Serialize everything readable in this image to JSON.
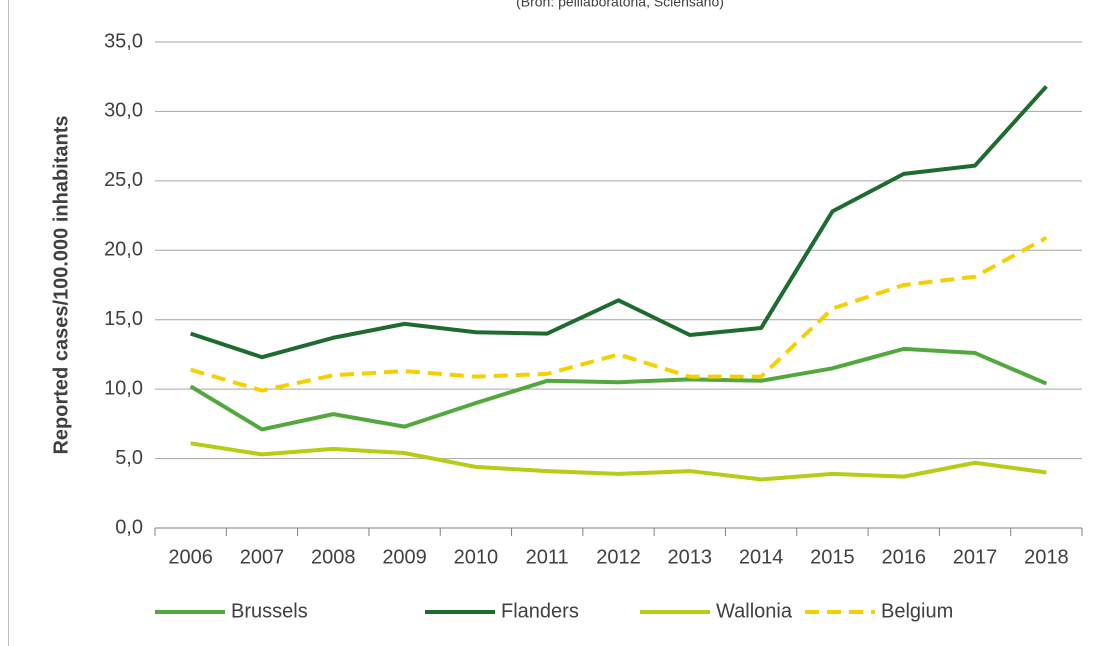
{
  "chart_data": {
    "type": "line",
    "subtitle": "(Bron: peillaboratoria, Sciensano)",
    "y_label": "Reported cases/100.000 inhabitants",
    "categories": [
      "2006",
      "2007",
      "2008",
      "2009",
      "2010",
      "2011",
      "2012",
      "2013",
      "2014",
      "2015",
      "2016",
      "2017",
      "2018"
    ],
    "series": [
      {
        "name": "Brussels",
        "color": "#52a83c",
        "dashed": false,
        "values": [
          10.2,
          7.1,
          8.2,
          7.3,
          9.0,
          10.6,
          10.5,
          10.7,
          10.6,
          11.5,
          12.9,
          12.6,
          10.4
        ]
      },
      {
        "name": "Flanders",
        "color": "#1e6b30",
        "dashed": false,
        "values": [
          14.0,
          12.3,
          13.7,
          14.7,
          14.1,
          14.0,
          16.4,
          13.9,
          14.4,
          22.8,
          25.5,
          26.1,
          31.8
        ]
      },
      {
        "name": "Wallonia",
        "color": "#b7cc16",
        "dashed": false,
        "values": [
          6.1,
          5.3,
          5.7,
          5.4,
          4.4,
          4.1,
          3.9,
          4.1,
          3.5,
          3.9,
          3.7,
          4.7,
          4.0
        ]
      },
      {
        "name": "Belgium",
        "color": "#f5d000",
        "dashed": true,
        "values": [
          11.4,
          9.9,
          11.0,
          11.3,
          10.9,
          11.1,
          12.5,
          10.9,
          10.9,
          15.8,
          17.5,
          18.1,
          20.9
        ]
      }
    ],
    "ylim": [
      0,
      35
    ],
    "yticks": [
      {
        "value": 0,
        "label": "0,0"
      },
      {
        "value": 5,
        "label": "5,0"
      },
      {
        "value": 10,
        "label": "10,0"
      },
      {
        "value": 15,
        "label": "15,0"
      },
      {
        "value": 20,
        "label": "20,0"
      },
      {
        "value": 25,
        "label": "25,0"
      },
      {
        "value": 30,
        "label": "30,0"
      },
      {
        "value": 35,
        "label": "35,0"
      }
    ],
    "grid": true,
    "legend": "bottom"
  }
}
